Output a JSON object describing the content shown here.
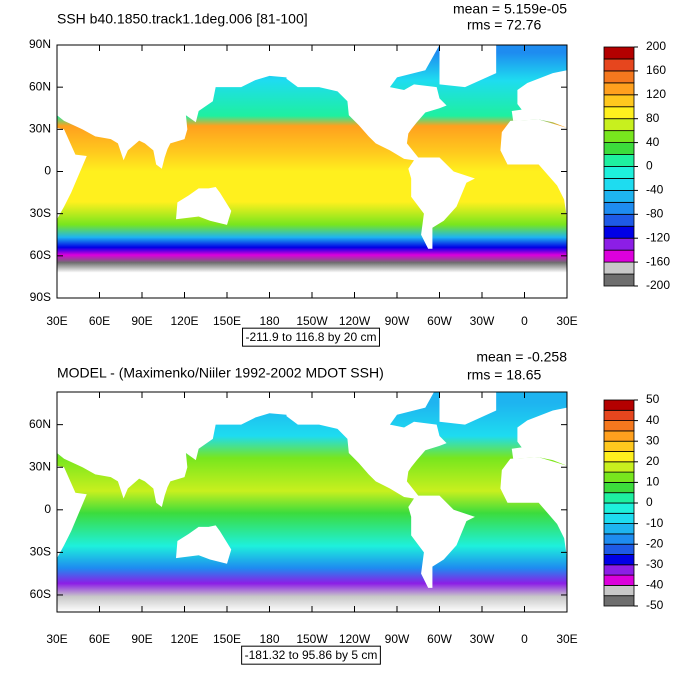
{
  "panels": [
    {
      "title": "SSH b40.1850.track1.1deg.006 [81-100]",
      "mean": "mean = 5.159e-05",
      "rms": "rms = 72.76",
      "range_label": "-211.9 to 116.8 by 20 cm",
      "xlim": [
        30,
        390
      ],
      "ylim": [
        -90,
        90
      ],
      "xticks": [
        {
          "value": 30,
          "label": "30E"
        },
        {
          "value": 60,
          "label": "60E"
        },
        {
          "value": 90,
          "label": "90E"
        },
        {
          "value": 120,
          "label": "120E"
        },
        {
          "value": 150,
          "label": "150E"
        },
        {
          "value": 180,
          "label": "180"
        },
        {
          "value": 210,
          "label": "150W"
        },
        {
          "value": 240,
          "label": "120W"
        },
        {
          "value": 270,
          "label": "90W"
        },
        {
          "value": 300,
          "label": "60W"
        },
        {
          "value": 330,
          "label": "30W"
        },
        {
          "value": 360,
          "label": "0"
        },
        {
          "value": 390,
          "label": "30E"
        }
      ],
      "yticks": [
        {
          "value": 90,
          "label": "90N"
        },
        {
          "value": 60,
          "label": "60N"
        },
        {
          "value": 30,
          "label": "30N"
        },
        {
          "value": 0,
          "label": "0"
        },
        {
          "value": -30,
          "label": "30S"
        },
        {
          "value": -60,
          "label": "60S"
        },
        {
          "value": -90,
          "label": "90S"
        }
      ],
      "colorbar": {
        "lim": [
          -200,
          200
        ],
        "ticks": [
          200,
          160,
          120,
          80,
          40,
          0,
          -40,
          -80,
          -120,
          -160,
          -200
        ],
        "colors": [
          "#6e6e6e",
          "#c8c8c8",
          "#dc00dc",
          "#8c1ee6",
          "#0000e6",
          "#1e5ae6",
          "#1e8cf0",
          "#1eb4f0",
          "#1edcf0",
          "#1ef0dc",
          "#1ef0a0",
          "#3cdc3c",
          "#78e61e",
          "#c8f01e",
          "#fff01e",
          "#ffc81e",
          "#ffa01e",
          "#f5781e",
          "#e6461e",
          "#b40000"
        ]
      }
    },
    {
      "title": "MODEL - (Maximenko/Niiler 1992-2002 MDOT SSH)",
      "mean": "mean = -0.258",
      "rms": "rms = 18.65",
      "range_label": "-181.32 to 95.86 by 5 cm",
      "xlim": [
        30,
        390
      ],
      "ylim": [
        -72,
        83
      ],
      "xticks": [
        {
          "value": 30,
          "label": "30E"
        },
        {
          "value": 60,
          "label": "60E"
        },
        {
          "value": 90,
          "label": "90E"
        },
        {
          "value": 120,
          "label": "120E"
        },
        {
          "value": 150,
          "label": "150E"
        },
        {
          "value": 180,
          "label": "180"
        },
        {
          "value": 210,
          "label": "150W"
        },
        {
          "value": 240,
          "label": "120W"
        },
        {
          "value": 270,
          "label": "90W"
        },
        {
          "value": 300,
          "label": "60W"
        },
        {
          "value": 330,
          "label": "30W"
        },
        {
          "value": 360,
          "label": "0"
        },
        {
          "value": 390,
          "label": "30E"
        }
      ],
      "yticks": [
        {
          "value": 60,
          "label": "60N"
        },
        {
          "value": 30,
          "label": "30N"
        },
        {
          "value": 0,
          "label": "0"
        },
        {
          "value": -30,
          "label": "30S"
        },
        {
          "value": -60,
          "label": "60S"
        }
      ],
      "colorbar": {
        "lim": [
          -50,
          50
        ],
        "ticks": [
          50,
          40,
          30,
          20,
          10,
          0,
          -10,
          -20,
          -30,
          -40,
          -50
        ],
        "colors": [
          "#6e6e6e",
          "#c8c8c8",
          "#dc00dc",
          "#8c1ee6",
          "#0000e6",
          "#1e5ae6",
          "#1e8cf0",
          "#1eb4f0",
          "#1edcf0",
          "#1ef0dc",
          "#1ef0a0",
          "#3cdc3c",
          "#78e61e",
          "#c8f01e",
          "#fff01e",
          "#ffc81e",
          "#ffa01e",
          "#f5781e",
          "#e6461e",
          "#b40000"
        ]
      }
    }
  ]
}
